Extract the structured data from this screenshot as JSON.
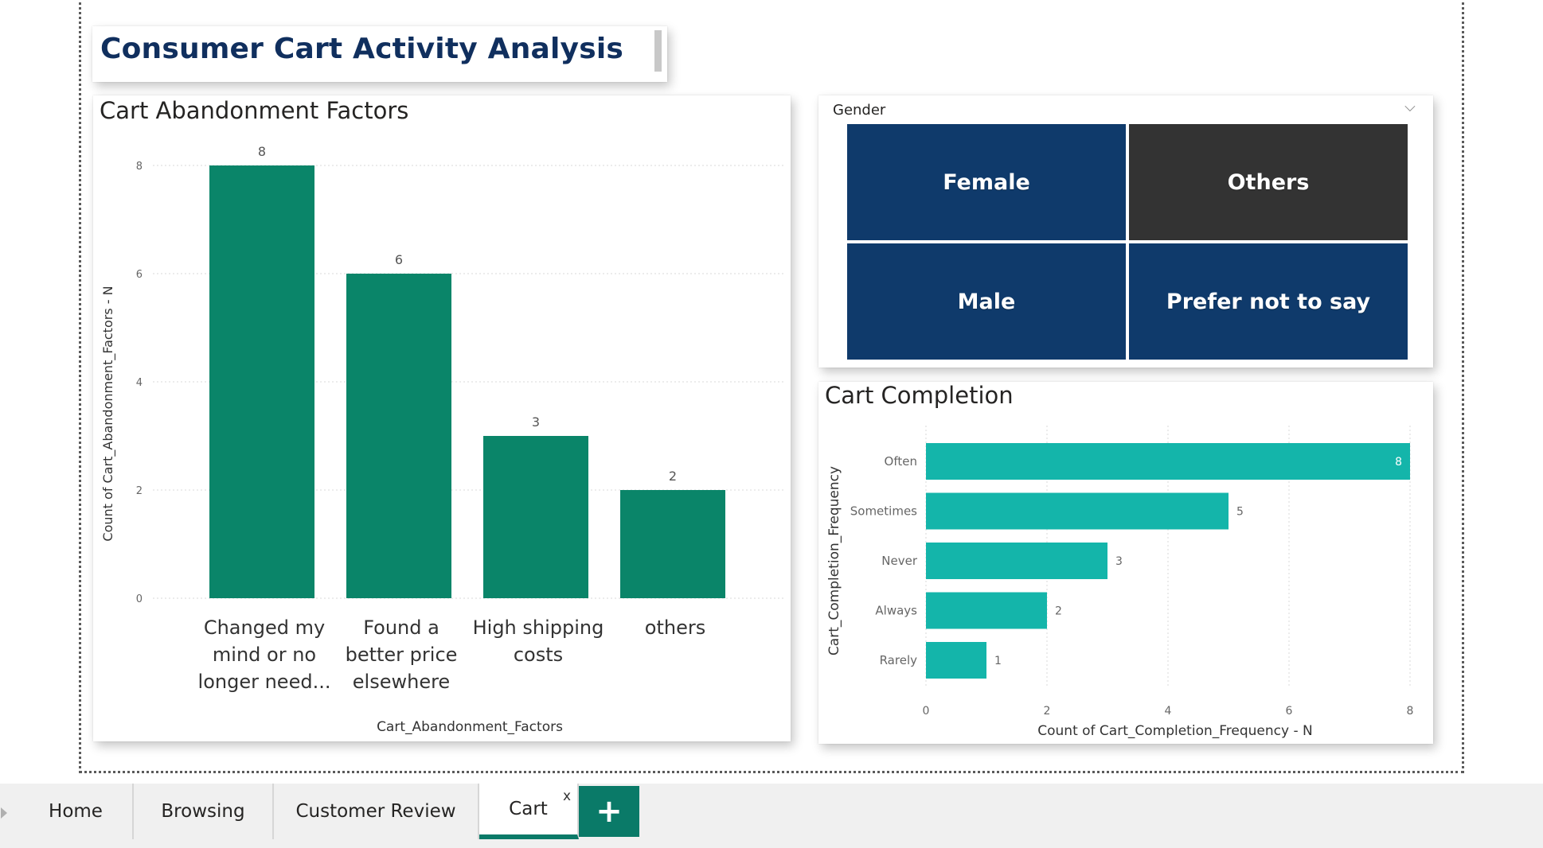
{
  "page": {
    "title": "Consumer Cart Activity Analysis"
  },
  "tabs": [
    {
      "label": "Home",
      "active": false
    },
    {
      "label": "Browsing",
      "active": false
    },
    {
      "label": "Customer Review",
      "active": false
    },
    {
      "label": "Cart",
      "active": true
    }
  ],
  "tab_close_glyph": "x",
  "add_tab_glyph": "+",
  "slicer": {
    "header": "Gender",
    "chevron": "⌵",
    "options": [
      {
        "label": "Female",
        "selected": true
      },
      {
        "label": "Others",
        "selected": false
      },
      {
        "label": "Male",
        "selected": true
      },
      {
        "label": "Prefer not to say",
        "selected": true
      }
    ],
    "selected_color": "#0f3a6b",
    "unselected_color": "#333333"
  },
  "chart_data": [
    {
      "type": "bar",
      "title": "Cart Abandonment Factors",
      "categories": [
        [
          "Changed my",
          "mind or no",
          "longer need..."
        ],
        [
          "Found a",
          "better price",
          "elsewhere"
        ],
        [
          "High shipping",
          "costs"
        ],
        [
          "others"
        ]
      ],
      "values": [
        8,
        6,
        3,
        2
      ],
      "xlabel": "Cart_Abandonment_Factors",
      "ylabel": "Count of Cart_Abandonment_Factors - N",
      "ylim": [
        0,
        8
      ],
      "yticks": [
        0,
        2,
        4,
        6,
        8
      ],
      "color": "#0a8569",
      "data_labels": true,
      "grid": true
    },
    {
      "type": "bar",
      "orientation": "horizontal",
      "title": "Cart Completion",
      "categories": [
        "Often",
        "Sometimes",
        "Never",
        "Always",
        "Rarely"
      ],
      "values": [
        8,
        5,
        3,
        2,
        1
      ],
      "xlabel": "Count of Cart_Completion_Frequency - N",
      "ylabel": "Cart_Completion_Frequency",
      "xlim": [
        0,
        8
      ],
      "xticks": [
        0,
        2,
        4,
        6,
        8
      ],
      "color": "#14b5aa",
      "data_labels": true,
      "grid": true
    }
  ]
}
